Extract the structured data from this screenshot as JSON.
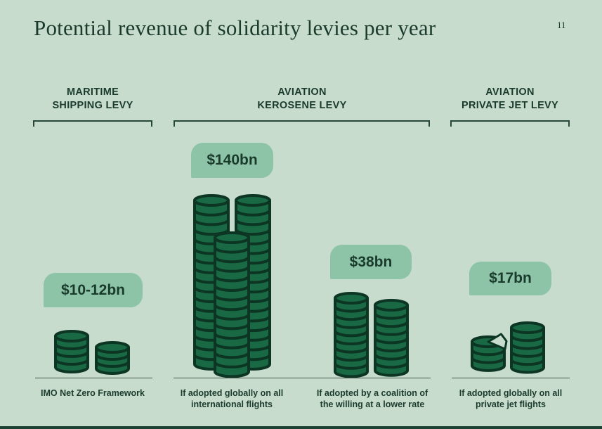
{
  "page": {
    "title": "Potential revenue of solidarity levies per year",
    "page_number": "11"
  },
  "colors": {
    "background": "#c8dcce",
    "text": "#1a3b2c",
    "badge_bg": "#8dc4a7",
    "coin_fill": "#196945",
    "coin_stroke": "#0c3623",
    "baseline": "#465549",
    "bracket": "#26483a",
    "footer_bar": "#1c4233"
  },
  "chart_data": {
    "type": "pictogram-bar",
    "title": "Potential revenue of solidarity levies per year",
    "unit": "USD billions per year",
    "legend": "coin stacks sized proportionally to revenue",
    "groups": [
      {
        "header": "MARITIME\nSHIPPING LEVY",
        "items": [
          {
            "value_label": "$10-12bn",
            "value_bn_low": 10,
            "value_bn_high": 12,
            "caption": "IMO Net Zero Framework",
            "stacks": [
              {
                "coins": 4
              },
              {
                "coins": 3
              }
            ]
          }
        ]
      },
      {
        "header": "AVIATION\nKEROSENE LEVY",
        "items": [
          {
            "value_label": "$140bn",
            "value_bn": 140,
            "caption": "If adopted globally on all\ninternational flights",
            "stacks": [
              {
                "coins": 17
              },
              {
                "coins": 17
              },
              {
                "coins": 14
              }
            ]
          },
          {
            "value_label": "$38bn",
            "value_bn": 38,
            "caption": "If adopted by a coalition of\nthe willing at a lower rate",
            "stacks": [
              {
                "coins": 9
              },
              {
                "coins": 8
              }
            ]
          }
        ]
      },
      {
        "header": "AVIATION\nPRIVATE JET LEVY",
        "items": [
          {
            "value_label": "$17bn",
            "value_bn": 17,
            "caption": "If adopted globally on all\nprivate jet flights",
            "stacks": [
              {
                "coins": 3,
                "notch": true
              },
              {
                "coins": 5
              }
            ]
          }
        ]
      }
    ]
  }
}
